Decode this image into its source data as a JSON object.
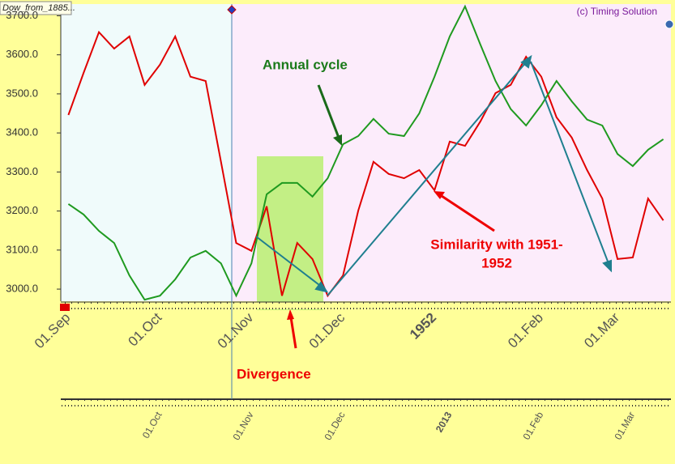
{
  "chart_data": {
    "type": "line",
    "tab_label": "Dow_from_1885...",
    "watermark": "(c) Timing Solution",
    "annotations": [
      "Annual cycle",
      "Similarity with 1951-",
      "1952",
      "Divergence"
    ],
    "categories": [
      "01.Sep",
      null,
      null,
      null,
      null,
      null,
      "01.Oct",
      null,
      null,
      null,
      null,
      null,
      "01.Nov",
      null,
      null,
      null,
      null,
      null,
      "01.Dec",
      null,
      null,
      null,
      null,
      null,
      "1952",
      null,
      null,
      null,
      null,
      null,
      null,
      "01.Feb",
      null,
      null,
      null,
      null,
      "01.Mar",
      null,
      null,
      null
    ],
    "secondary_categories": [
      null,
      null,
      null,
      null,
      null,
      null,
      "01.Oct",
      null,
      null,
      null,
      null,
      null,
      "01.Nov",
      null,
      null,
      null,
      null,
      null,
      "01.Dec",
      null,
      null,
      null,
      null,
      null,
      null,
      "2013",
      null,
      null,
      null,
      null,
      null,
      "01.Feb",
      null,
      null,
      null,
      null,
      null,
      "01.Mar",
      null,
      null
    ],
    "highlight_categories": [
      "1952",
      "2013"
    ],
    "highlight_color": "#8b1a1a",
    "series": [
      {
        "color": "#e00000",
        "values": [
          3446,
          3554,
          3658,
          3616,
          3647,
          3523,
          3575,
          3647,
          3544,
          3533,
          3326,
          3118,
          3098,
          3212,
          2983,
          3118,
          3077,
          2983,
          3035,
          3201,
          3326,
          3295,
          3284,
          3305,
          3253,
          3378,
          3367,
          3429,
          3502,
          3523,
          3595,
          3544,
          3440,
          3388,
          3305,
          3232,
          3077,
          3081,
          3232,
          3176
        ]
      },
      {
        "color": "#1f9a1f",
        "values": [
          3218,
          3191,
          3149,
          3118,
          3035,
          2973,
          2983,
          3025,
          3081,
          3098,
          3066,
          2983,
          3066,
          3243,
          3272,
          3272,
          3237,
          3284,
          3371,
          3392,
          3436,
          3398,
          3392,
          3450,
          3544,
          3647,
          3724,
          3627,
          3533,
          3461,
          3419,
          3471,
          3533,
          3481,
          3434,
          3419,
          3346,
          3315,
          3357,
          3384
        ]
      }
    ],
    "ylim": [
      2969,
      3730
    ],
    "yticks": [
      {
        "value": 3000,
        "label": "3000.0"
      },
      {
        "value": 3100,
        "label": "3100.0"
      },
      {
        "value": 3200,
        "label": "3200.0"
      },
      {
        "value": 3300,
        "label": "3300.0"
      },
      {
        "value": 3400,
        "label": "3400.0"
      },
      {
        "value": 3500,
        "label": "3500.0"
      },
      {
        "value": 3600,
        "label": "3600.0"
      },
      {
        "value": 3700,
        "label": "3700.0"
      }
    ],
    "grid": false
  }
}
